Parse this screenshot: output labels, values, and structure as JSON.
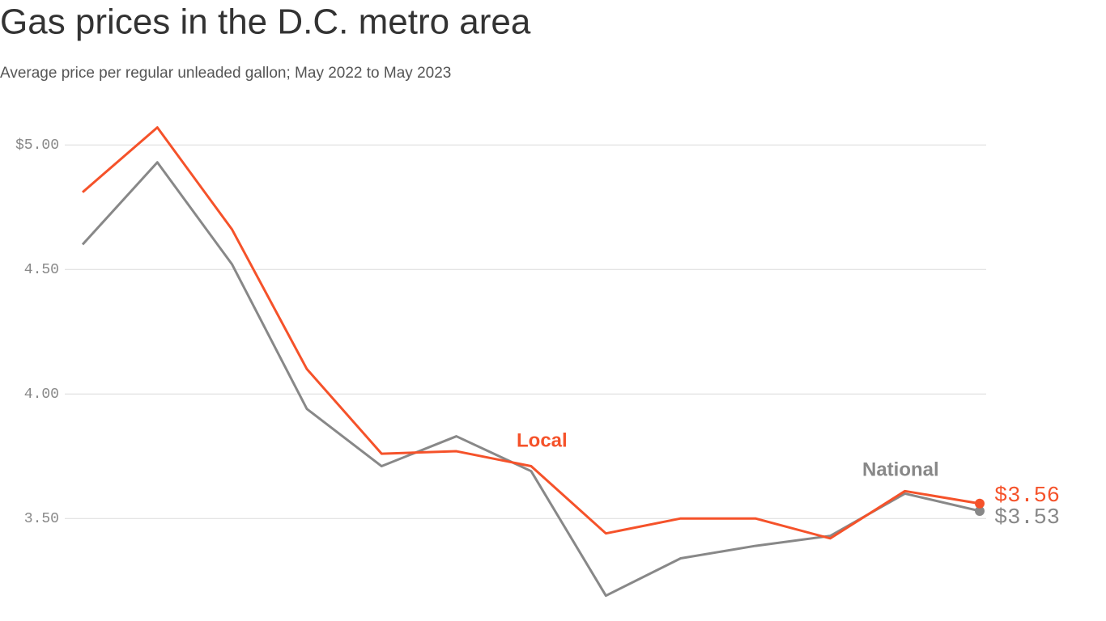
{
  "chart_data": {
    "type": "line",
    "title": "Gas prices in the D.C. metro area",
    "subtitle": "Average price per regular unleaded gallon; May 2022 to May 2023",
    "categories": [
      null,
      null,
      null,
      null,
      null,
      null,
      null,
      null,
      null,
      null,
      null,
      null,
      null
    ],
    "series": [
      {
        "name": "Local",
        "color": "#f5522a",
        "values": [
          4.81,
          5.07,
          4.66,
          4.1,
          3.76,
          3.77,
          3.71,
          3.44,
          3.5,
          3.5,
          3.42,
          3.61,
          3.56
        ],
        "value_labels": [
          null,
          null,
          null,
          null,
          null,
          null,
          null,
          null,
          null,
          null,
          null,
          null,
          "$3.56"
        ]
      },
      {
        "name": "National",
        "color": "#888888",
        "values": [
          4.6,
          4.93,
          4.52,
          3.94,
          3.71,
          3.83,
          3.69,
          3.19,
          3.34,
          3.39,
          3.43,
          3.6,
          3.53
        ],
        "value_labels": [
          null,
          null,
          null,
          null,
          null,
          null,
          null,
          null,
          null,
          null,
          null,
          null,
          "$3.53"
        ]
      }
    ],
    "ylim": [
      3.15,
      5.15
    ],
    "yticks": [
      {
        "value": 3.5,
        "label": "3.50"
      },
      {
        "value": 4,
        "label": "4.00"
      },
      {
        "value": 4.5,
        "label": "4.50"
      },
      {
        "value": 5,
        "label": "$5.00"
      }
    ],
    "grid": true
  }
}
